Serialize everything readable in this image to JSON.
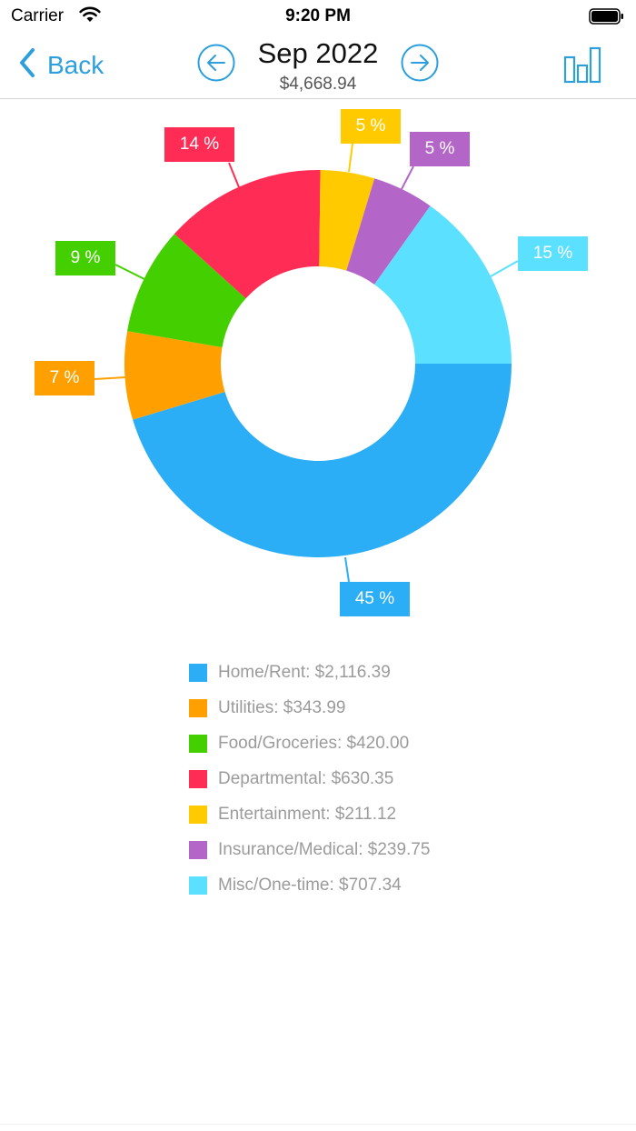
{
  "status_bar": {
    "carrier": "Carrier",
    "time": "9:20 PM"
  },
  "nav": {
    "back_label": "Back",
    "title": "Sep 2022",
    "subtitle": "$4,668.94",
    "accent_color": "#2c9fdc"
  },
  "chart_data": {
    "type": "pie",
    "variant": "donut",
    "title": "Sep 2022",
    "total": 4668.94,
    "total_label": "$4,668.94",
    "start_angle_deg": 0,
    "direction": "clockwise",
    "categories": [
      "Home/Rent",
      "Utilities",
      "Food/Groceries",
      "Departmental",
      "Entertainment",
      "Insurance/Medical",
      "Misc/One-time"
    ],
    "values": [
      2116.39,
      343.99,
      420.0,
      630.35,
      211.12,
      239.75,
      707.34
    ],
    "percent_labels": [
      "45 %",
      "7 %",
      "9 %",
      "14 %",
      "5 %",
      "5 %",
      "15 %"
    ],
    "colors": [
      "#2baef6",
      "#ffa000",
      "#44cf00",
      "#ff2d55",
      "#ffcb00",
      "#b466c8",
      "#5ce0ff"
    ],
    "legend": [
      {
        "label": "Home/Rent: $2,116.39",
        "color": "#2baef6"
      },
      {
        "label": "Utilities: $343.99",
        "color": "#ffa000"
      },
      {
        "label": "Food/Groceries: $420.00",
        "color": "#44cf00"
      },
      {
        "label": "Departmental: $630.35",
        "color": "#ff2d55"
      },
      {
        "label": "Entertainment: $211.12",
        "color": "#ffcb00"
      },
      {
        "label": "Insurance/Medical: $239.75",
        "color": "#b466c8"
      },
      {
        "label": "Misc/One-time: $707.34",
        "color": "#5ce0ff"
      }
    ],
    "legend_position": "bottom",
    "grid": false
  }
}
